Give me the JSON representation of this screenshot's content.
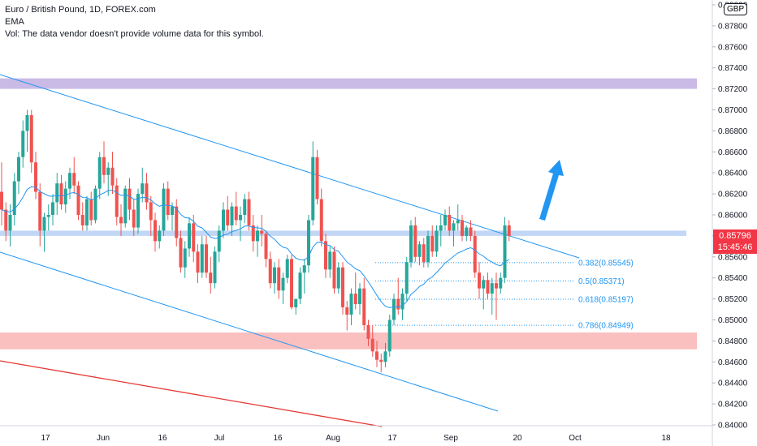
{
  "legend": {
    "title": "Euro / British Pound, 1D, FOREX.com",
    "indicator": "EMA",
    "volume_note": "Vol: The data vendor doesn't provide volume data for this symbol."
  },
  "currency": "GBP",
  "last_price": {
    "value": "0.85796",
    "countdown": "15:45:46"
  },
  "colors": {
    "up": "#26a69a",
    "down": "#ef5350",
    "channel": "#2196f3",
    "ema": "#2196f3",
    "resistance_zone": "#b39ddb",
    "support_zone": "#f8a4a4",
    "level_band": "#b3cdf2",
    "red_trend": "#e53935",
    "arrow": "#2196f3",
    "price_tag": "#f23645"
  },
  "chart_data": {
    "type": "candlestick",
    "x_ticks": [
      "17",
      "Jun",
      "16",
      "Jul",
      "16",
      "Aug",
      "17",
      "Sep",
      "20",
      "Oct",
      "18"
    ],
    "y_ticks": [
      "0.88000",
      "0.87800",
      "0.87600",
      "0.87400",
      "0.87200",
      "0.87000",
      "0.86800",
      "0.86600",
      "0.86400",
      "0.86200",
      "0.86000",
      "0.85800",
      "0.85600",
      "0.85400",
      "0.85200",
      "0.85000",
      "0.84800",
      "0.84600",
      "0.84400",
      "0.84200",
      "0.84000"
    ],
    "ylim": [
      0.84,
      0.88
    ],
    "fib_levels": [
      {
        "label": "0.382(0.85545)",
        "price": 0.85545
      },
      {
        "label": "0.5(0.85371)",
        "price": 0.85371
      },
      {
        "label": "0.618(0.85197)",
        "price": 0.85197
      },
      {
        "label": "0.786(0.84949)",
        "price": 0.84949
      }
    ],
    "zones": [
      {
        "name": "resistance",
        "from": 0.872,
        "to": 0.873
      },
      {
        "name": "support",
        "from": 0.8472,
        "to": 0.8488
      }
    ],
    "level_band": {
      "from": 0.858,
      "to": 0.8585
    },
    "candles": [
      [
        0.8622,
        0.865,
        0.859,
        0.8605
      ],
      [
        0.8605,
        0.8612,
        0.8575,
        0.8585
      ],
      [
        0.8585,
        0.861,
        0.857,
        0.86
      ],
      [
        0.86,
        0.864,
        0.859,
        0.8632
      ],
      [
        0.8632,
        0.866,
        0.862,
        0.8655
      ],
      [
        0.8655,
        0.869,
        0.8645,
        0.868
      ],
      [
        0.868,
        0.87,
        0.866,
        0.8695
      ],
      [
        0.8695,
        0.87,
        0.864,
        0.865
      ],
      [
        0.865,
        0.866,
        0.8615,
        0.8622
      ],
      [
        0.8622,
        0.863,
        0.857,
        0.8585
      ],
      [
        0.8585,
        0.8602,
        0.8565,
        0.8598
      ],
      [
        0.8598,
        0.861,
        0.8585,
        0.86
      ],
      [
        0.86,
        0.862,
        0.859,
        0.8612
      ],
      [
        0.8612,
        0.864,
        0.86,
        0.863
      ],
      [
        0.863,
        0.8638,
        0.8605,
        0.861
      ],
      [
        0.861,
        0.8632,
        0.8602,
        0.8625
      ],
      [
        0.8625,
        0.8645,
        0.8615,
        0.864
      ],
      [
        0.864,
        0.8655,
        0.862,
        0.8628
      ],
      [
        0.8628,
        0.8632,
        0.8595,
        0.86
      ],
      [
        0.86,
        0.8612,
        0.8585,
        0.859
      ],
      [
        0.859,
        0.8618,
        0.8585,
        0.8615
      ],
      [
        0.8615,
        0.8622,
        0.859,
        0.8595
      ],
      [
        0.8595,
        0.8628,
        0.8592,
        0.8625
      ],
      [
        0.8625,
        0.866,
        0.8615,
        0.8655
      ],
      [
        0.8655,
        0.867,
        0.863,
        0.8638
      ],
      [
        0.8638,
        0.865,
        0.8618,
        0.8645
      ],
      [
        0.8645,
        0.866,
        0.862,
        0.8628
      ],
      [
        0.8628,
        0.8635,
        0.859,
        0.8598
      ],
      [
        0.8598,
        0.861,
        0.858,
        0.8592
      ],
      [
        0.8592,
        0.8628,
        0.8588,
        0.8625
      ],
      [
        0.8625,
        0.8635,
        0.8595,
        0.8605
      ],
      [
        0.8605,
        0.8615,
        0.858,
        0.8588
      ],
      [
        0.8588,
        0.8625,
        0.8582,
        0.862
      ],
      [
        0.862,
        0.8645,
        0.8612,
        0.863
      ],
      [
        0.863,
        0.864,
        0.8605,
        0.8612
      ],
      [
        0.8612,
        0.8618,
        0.858,
        0.8595
      ],
      [
        0.8595,
        0.8602,
        0.8565,
        0.8575
      ],
      [
        0.8575,
        0.859,
        0.8568,
        0.8585
      ],
      [
        0.8585,
        0.863,
        0.858,
        0.8625
      ],
      [
        0.8625,
        0.8632,
        0.8595,
        0.86
      ],
      [
        0.86,
        0.8612,
        0.8585,
        0.8608
      ],
      [
        0.8608,
        0.8615,
        0.857,
        0.8578
      ],
      [
        0.8578,
        0.8585,
        0.8545,
        0.855
      ],
      [
        0.855,
        0.8575,
        0.854,
        0.8568
      ],
      [
        0.8568,
        0.8598,
        0.856,
        0.8592
      ],
      [
        0.8592,
        0.86,
        0.8555,
        0.8565
      ],
      [
        0.8565,
        0.8572,
        0.8535,
        0.8545
      ],
      [
        0.8545,
        0.858,
        0.854,
        0.8572
      ],
      [
        0.8572,
        0.858,
        0.854,
        0.8545
      ],
      [
        0.8545,
        0.856,
        0.8525,
        0.8535
      ],
      [
        0.8535,
        0.857,
        0.853,
        0.8565
      ],
      [
        0.8565,
        0.859,
        0.8555,
        0.8585
      ],
      [
        0.8585,
        0.8612,
        0.8578,
        0.8605
      ],
      [
        0.8605,
        0.8618,
        0.8585,
        0.859
      ],
      [
        0.859,
        0.8612,
        0.858,
        0.8608
      ],
      [
        0.8608,
        0.8622,
        0.859,
        0.8595
      ],
      [
        0.8595,
        0.8608,
        0.8575,
        0.86
      ],
      [
        0.86,
        0.862,
        0.8592,
        0.8615
      ],
      [
        0.8615,
        0.8622,
        0.8585,
        0.859
      ],
      [
        0.859,
        0.86,
        0.8565,
        0.8575
      ],
      [
        0.8575,
        0.859,
        0.856,
        0.8585
      ],
      [
        0.8585,
        0.86,
        0.857,
        0.8582
      ],
      [
        0.8582,
        0.8585,
        0.855,
        0.8558
      ],
      [
        0.8558,
        0.8565,
        0.853,
        0.8535
      ],
      [
        0.8535,
        0.8555,
        0.8525,
        0.855
      ],
      [
        0.855,
        0.8558,
        0.852,
        0.8528
      ],
      [
        0.8528,
        0.8545,
        0.8515,
        0.854
      ],
      [
        0.854,
        0.8562,
        0.8535,
        0.8558
      ],
      [
        0.8558,
        0.8562,
        0.851,
        0.8512
      ],
      [
        0.8512,
        0.852,
        0.8505,
        0.852
      ],
      [
        0.852,
        0.855,
        0.8515,
        0.8545
      ],
      [
        0.8545,
        0.8558,
        0.8525,
        0.8552
      ],
      [
        0.8552,
        0.86,
        0.8545,
        0.8595
      ],
      [
        0.8595,
        0.867,
        0.859,
        0.8655
      ],
      [
        0.8655,
        0.8662,
        0.861,
        0.8615
      ],
      [
        0.8615,
        0.8625,
        0.857,
        0.8575
      ],
      [
        0.8575,
        0.8582,
        0.854,
        0.8548
      ],
      [
        0.8548,
        0.857,
        0.854,
        0.8565
      ],
      [
        0.8565,
        0.857,
        0.8525,
        0.853
      ],
      [
        0.853,
        0.8555,
        0.8525,
        0.855
      ],
      [
        0.855,
        0.8555,
        0.8505,
        0.8512
      ],
      [
        0.8512,
        0.8518,
        0.849,
        0.8505
      ],
      [
        0.8505,
        0.853,
        0.8495,
        0.8525
      ],
      [
        0.8525,
        0.8545,
        0.851,
        0.8515
      ],
      [
        0.8515,
        0.8535,
        0.8505,
        0.853
      ],
      [
        0.853,
        0.854,
        0.849,
        0.8495
      ],
      [
        0.8495,
        0.85,
        0.8475,
        0.8482
      ],
      [
        0.8482,
        0.8495,
        0.8465,
        0.847
      ],
      [
        0.847,
        0.848,
        0.8455,
        0.8462
      ],
      [
        0.8462,
        0.8468,
        0.845,
        0.846
      ],
      [
        0.846,
        0.8478,
        0.8455,
        0.847
      ],
      [
        0.847,
        0.8505,
        0.8465,
        0.85
      ],
      [
        0.85,
        0.8525,
        0.8495,
        0.852
      ],
      [
        0.852,
        0.854,
        0.8505,
        0.851
      ],
      [
        0.851,
        0.853,
        0.85,
        0.8525
      ],
      [
        0.8525,
        0.856,
        0.8518,
        0.8555
      ],
      [
        0.8555,
        0.8595,
        0.855,
        0.859
      ],
      [
        0.859,
        0.8598,
        0.8555,
        0.856
      ],
      [
        0.856,
        0.8575,
        0.8552,
        0.8572
      ],
      [
        0.8572,
        0.8578,
        0.855,
        0.8555
      ],
      [
        0.8555,
        0.8585,
        0.855,
        0.858
      ],
      [
        0.858,
        0.859,
        0.856,
        0.8565
      ],
      [
        0.8565,
        0.859,
        0.856,
        0.8585
      ],
      [
        0.8585,
        0.86,
        0.857,
        0.859
      ],
      [
        0.859,
        0.8605,
        0.8585,
        0.86
      ],
      [
        0.86,
        0.8608,
        0.858,
        0.8585
      ],
      [
        0.8585,
        0.8595,
        0.857,
        0.8592
      ],
      [
        0.8592,
        0.861,
        0.8585,
        0.8595
      ],
      [
        0.8595,
        0.86,
        0.8575,
        0.858
      ],
      [
        0.858,
        0.859,
        0.8575,
        0.8588
      ],
      [
        0.8588,
        0.8595,
        0.8575,
        0.858
      ],
      [
        0.858,
        0.8585,
        0.854,
        0.8545
      ],
      [
        0.8545,
        0.8555,
        0.852,
        0.853
      ],
      [
        0.853,
        0.8542,
        0.851,
        0.8538
      ],
      [
        0.8538,
        0.8545,
        0.852,
        0.8525
      ],
      [
        0.8525,
        0.854,
        0.8505,
        0.8535
      ],
      [
        0.8535,
        0.8545,
        0.85,
        0.853
      ],
      [
        0.853,
        0.8545,
        0.8525,
        0.854
      ],
      [
        0.854,
        0.8598,
        0.8535,
        0.859
      ],
      [
        0.859,
        0.8595,
        0.8575,
        0.858
      ]
    ]
  }
}
